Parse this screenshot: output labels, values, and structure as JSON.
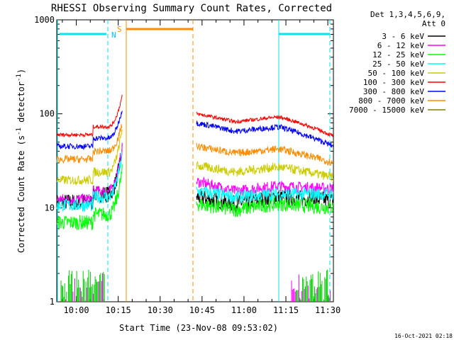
{
  "chart_data": {
    "type": "line",
    "title": "RHESSI Observing Summary Count Rates, Corrected",
    "xlabel": "Start Time (23-Nov-08 09:53:02)",
    "ylabel_main": "Corrected Count Rate (s",
    "ylabel_sup1": "-1",
    "ylabel_mid": " detector",
    "ylabel_sup2": "-1",
    "ylabel_end": ")",
    "yscale": "log",
    "ylim": [
      1,
      1000
    ],
    "xlim_minutes": [
      593,
      692
    ],
    "x_ticks": [
      {
        "m": 600,
        "label": "10:00"
      },
      {
        "m": 615,
        "label": "10:15"
      },
      {
        "m": 630,
        "label": "10:30"
      },
      {
        "m": 645,
        "label": "10:45"
      },
      {
        "m": 660,
        "label": "11:00"
      },
      {
        "m": 675,
        "label": "11:15"
      },
      {
        "m": 690,
        "label": "11:30"
      }
    ],
    "y_ticks": [
      {
        "v": 1,
        "label": "1"
      },
      {
        "v": 10,
        "label": "10"
      },
      {
        "v": 100,
        "label": "100"
      },
      {
        "v": 1000,
        "label": "1000"
      }
    ],
    "legend_header": [
      "Det 1,3,4,5,6,9,",
      "Att 0"
    ],
    "legend_placement": "top-right",
    "series": [
      {
        "name": "3 - 6 keV",
        "color": "#000000",
        "pre": 14,
        "flare": 0,
        "post_start": 13,
        "post_min": 11,
        "post_hump": 13,
        "post_end": 12,
        "noise": 0.09
      },
      {
        "name": "6 - 12 keV",
        "color": "#ff00ff",
        "pre": 15,
        "flare": 0,
        "post_start": 19,
        "post_min": 15,
        "post_hump": 17,
        "post_end": 16,
        "noise": 0.06
      },
      {
        "name": "12 - 25 keV",
        "color": "#00ff00",
        "pre": 8.5,
        "flare": 0,
        "post_start": 11,
        "post_min": 9.5,
        "post_hump": 11,
        "post_end": 10,
        "noise": 0.08
      },
      {
        "name": "25 - 50 keV",
        "color": "#00ffff",
        "pre": 13,
        "flare": 0,
        "post_start": 15,
        "post_min": 13,
        "post_hump": 14,
        "post_end": 14,
        "noise": 0.07
      },
      {
        "name": "50 - 100 keV",
        "color": "#cccc00",
        "pre": 24,
        "flare": 0,
        "post_start": 28,
        "post_min": 24,
        "post_hump": 27,
        "post_end": 21,
        "noise": 0.05
      },
      {
        "name": "100 - 300 keV",
        "color": "#ff0000",
        "pre": 73,
        "flare": 160,
        "post_start": 100,
        "post_min": 82,
        "post_hump": 92,
        "post_end": 58,
        "noise": 0.02
      },
      {
        "name": "300 - 800 keV",
        "color": "#0000ff",
        "pre": 55,
        "flare": 115,
        "post_start": 80,
        "post_min": 65,
        "post_hump": 72,
        "post_end": 45,
        "noise": 0.03
      },
      {
        "name": "800 - 7000 keV",
        "color": "#ff8c00",
        "pre": 40,
        "flare": 80,
        "post_start": 45,
        "post_min": 38,
        "post_hump": 42,
        "post_end": 30,
        "noise": 0.04
      },
      {
        "name": "7000 - 15000 keV",
        "color": "#808000",
        "pre": 0,
        "flare": 0,
        "post_start": 0,
        "post_min": 0,
        "post_hump": 0,
        "post_end": 0,
        "noise": 0
      }
    ],
    "annotations": {
      "saa_label": "S",
      "night_label": "N"
    },
    "footer_timestamp": "16-Oct-2021 02:18"
  }
}
